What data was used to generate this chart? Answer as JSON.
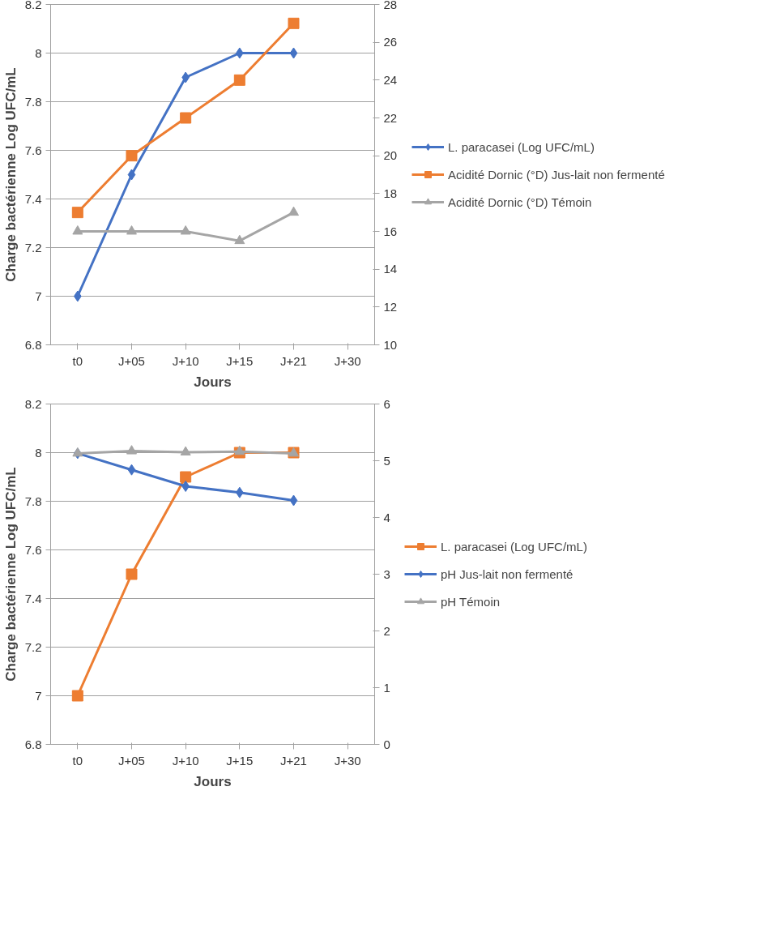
{
  "chart_data": [
    {
      "type": "line",
      "xlabel": "Jours",
      "ylabel": "Charge bactérienne Log UFC/mL",
      "categories": [
        "t0",
        "J+05",
        "J+10",
        "J+15",
        "J+21",
        "J+30"
      ],
      "ylim": [
        6.8,
        8.2
      ],
      "yticks": [
        6.8,
        7,
        7.2,
        7.4,
        7.6,
        7.8,
        8,
        8.2
      ],
      "y2lim": [
        10,
        28
      ],
      "y2ticks": [
        10,
        12,
        14,
        16,
        18,
        20,
        22,
        24,
        26,
        28
      ],
      "grid": "y",
      "legend": "right",
      "series": [
        {
          "name": "L. paracasei (Log UFC/mL)",
          "color": "#4472c4",
          "marker": "diamond",
          "values": [
            7,
            7.5,
            7.9,
            8,
            8,
            null
          ]
        },
        {
          "name": "Acidité Dornic (°D) Jus-lait non fermenté",
          "color": "#ed7d31",
          "marker": "square",
          "axis": "y2",
          "values": [
            17,
            20,
            22,
            24,
            27,
            null
          ]
        },
        {
          "name": "Acidité Dornic (°D) Témoin",
          "color": "#a5a5a5",
          "marker": "triangle",
          "axis": "y2",
          "values": [
            16,
            16,
            16,
            15.5,
            17,
            null
          ]
        }
      ]
    },
    {
      "type": "line",
      "xlabel": "Jours",
      "ylabel": "Charge bactérienne Log UFC/mL",
      "categories": [
        "t0",
        "J+05",
        "J+10",
        "J+15",
        "J+21",
        "J+30"
      ],
      "ylim": [
        6.8,
        8.2
      ],
      "yticks": [
        6.8,
        7,
        7.2,
        7.4,
        7.6,
        7.8,
        8,
        8.2
      ],
      "y2lim": [
        0,
        6
      ],
      "y2ticks": [
        0,
        1,
        2,
        3,
        4,
        5,
        6
      ],
      "grid": "y",
      "legend": "right",
      "series": [
        {
          "name": "L. paracasei (Log UFC/mL)",
          "color": "#ed7d31",
          "marker": "square",
          "values": [
            7,
            7.5,
            7.9,
            8,
            8,
            null
          ]
        },
        {
          "name": "pH Jus-lait non fermenté",
          "color": "#4472c4",
          "marker": "diamond",
          "axis": "y2",
          "values": [
            5.13,
            4.84,
            4.55,
            4.44,
            4.3,
            null
          ]
        },
        {
          "name": "pH Témoin",
          "color": "#a5a5a5",
          "marker": "triangle",
          "axis": "y2",
          "values": [
            5.13,
            5.17,
            5.15,
            5.16,
            5.13,
            null
          ]
        }
      ]
    }
  ]
}
